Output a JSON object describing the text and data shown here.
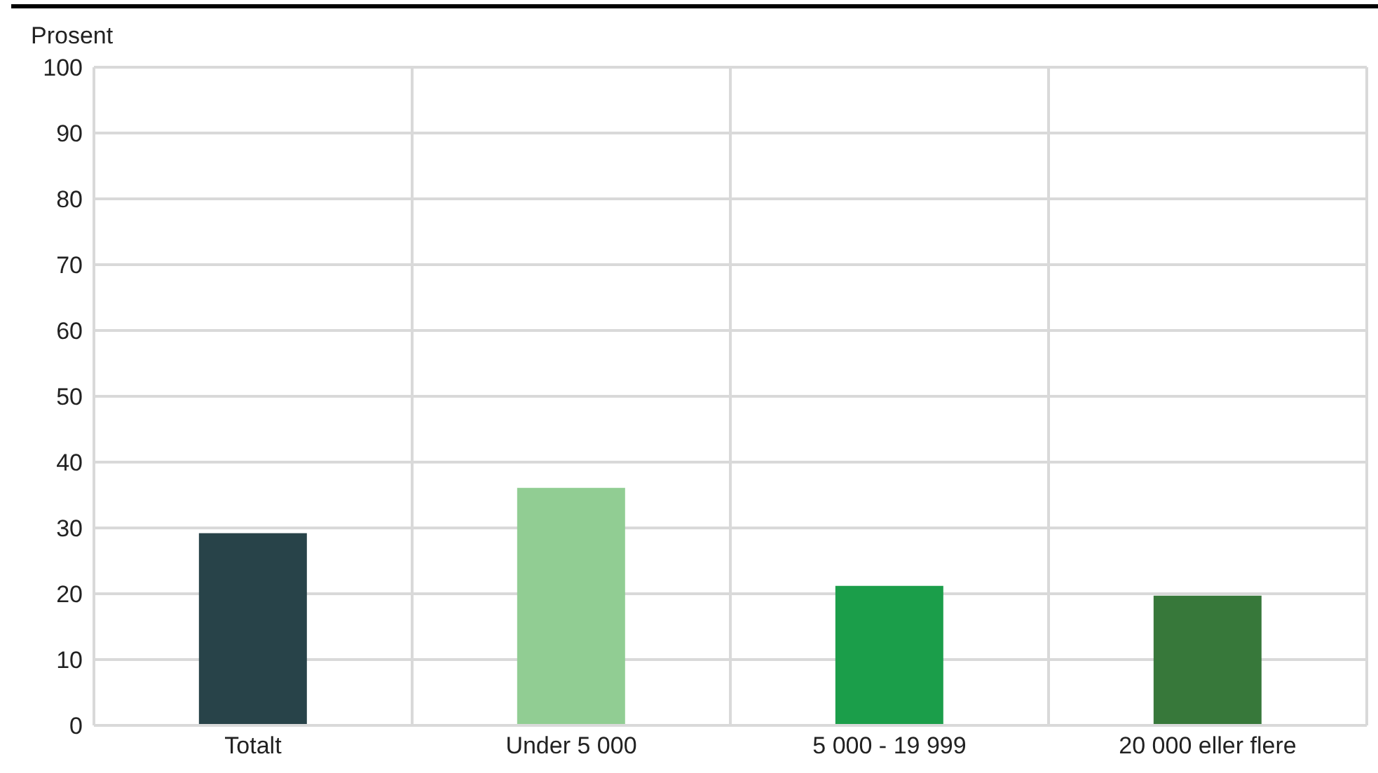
{
  "chart_data": {
    "type": "bar",
    "ylabel": "Prosent",
    "categories": [
      "Totalt",
      "Under 5 000",
      "5 000 - 19 999",
      "20 000 eller flere"
    ],
    "values": [
      29.2,
      36.1,
      21.2,
      19.7
    ],
    "colors": [
      "#284349",
      "#91cd93",
      "#1b9e4a",
      "#37783a"
    ],
    "ylim": [
      0,
      100
    ],
    "yticks": [
      0,
      10,
      20,
      30,
      40,
      50,
      60,
      70,
      80,
      90,
      100
    ],
    "grid": true
  }
}
